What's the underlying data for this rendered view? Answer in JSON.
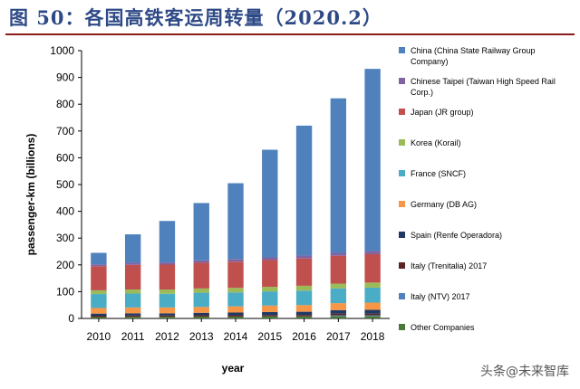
{
  "figure_title": "图 50：各国高铁客运周转量（2020.2）",
  "watermark": "头条@未来智库",
  "chart_data": {
    "type": "bar",
    "stacked": true,
    "categories": [
      "2010",
      "2011",
      "2012",
      "2013",
      "2014",
      "2015",
      "2016",
      "2017",
      "2018"
    ],
    "xlabel": "year",
    "ylabel": "passenger-km (billions)",
    "ylim": [
      0,
      1000
    ],
    "yticks": [
      0,
      100,
      200,
      300,
      400,
      500,
      600,
      700,
      800,
      900,
      1000
    ],
    "grid": false,
    "legend_position": "right",
    "series": [
      {
        "name": "Other Companies",
        "color": "#4a7a3a",
        "values": [
          5,
          6,
          6,
          7,
          7,
          8,
          8,
          9,
          9
        ]
      },
      {
        "name": "Italy (NTV) 2017",
        "color": "#4f81bd",
        "values": [
          0,
          0,
          0,
          0,
          0,
          0,
          0,
          3,
          3
        ]
      },
      {
        "name": "Italy (Trenitalia) 2017",
        "color": "#5c2323",
        "values": [
          5,
          5,
          5,
          5,
          5,
          5,
          5,
          6,
          6
        ]
      },
      {
        "name": "Spain (Renfe Operadora)",
        "color": "#1f3864",
        "values": [
          8,
          8,
          8,
          9,
          10,
          11,
          12,
          13,
          14
        ]
      },
      {
        "name": "Germany (DB AG)",
        "color": "#f79646",
        "values": [
          21,
          22,
          22,
          22,
          23,
          24,
          25,
          26,
          27
        ]
      },
      {
        "name": "France (SNCF)",
        "color": "#4bacc6",
        "values": [
          52,
          52,
          51,
          53,
          52,
          53,
          54,
          55,
          56
        ]
      },
      {
        "name": "Korea (Korail)",
        "color": "#9bbb59",
        "values": [
          14,
          15,
          16,
          16,
          17,
          17,
          18,
          18,
          19
        ]
      },
      {
        "name": "Japan (JR group)",
        "color": "#c0504d",
        "values": [
          90,
          92,
          93,
          96,
          98,
          100,
          102,
          104,
          106
        ]
      },
      {
        "name": "Chinese Taipei (Taiwan High Speed Rail Corp.)",
        "color": "#8064a2",
        "values": [
          7,
          8,
          8,
          9,
          10,
          10,
          11,
          11,
          12
        ]
      },
      {
        "name": "China (China State Railway Group Company)",
        "color": "#4f81bd",
        "values": [
          43,
          106,
          155,
          214,
          283,
          402,
          485,
          577,
          680
        ]
      }
    ],
    "legend_order": [
      "China (China State Railway Group Company)",
      "Chinese Taipei (Taiwan High Speed Rail Corp.)",
      "Japan (JR group)",
      "Korea (Korail)",
      "France (SNCF)",
      "Germany (DB AG)",
      "Spain (Renfe Operadora)",
      "Italy (Trenitalia) 2017",
      "Italy (NTV) 2017",
      "Other Companies"
    ]
  }
}
